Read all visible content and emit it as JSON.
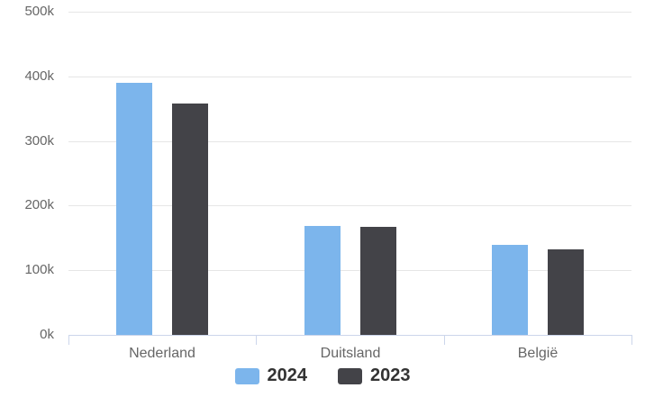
{
  "chart_data": {
    "type": "bar",
    "title": "",
    "xlabel": "",
    "ylabel": "",
    "categories": [
      "Nederland",
      "Duitsland",
      "België"
    ],
    "series": [
      {
        "name": "2024",
        "color": "#7cb5ec",
        "values": [
          390000,
          168000,
          139000
        ]
      },
      {
        "name": "2023",
        "color": "#434348",
        "values": [
          358000,
          167000,
          132000
        ]
      }
    ],
    "ylim": [
      0,
      500000
    ],
    "ytick_step": 100000,
    "yticks": [
      {
        "value": 0,
        "label": "0k"
      },
      {
        "value": 100000,
        "label": "100k"
      },
      {
        "value": 200000,
        "label": "200k"
      },
      {
        "value": 300000,
        "label": "300k"
      },
      {
        "value": 400000,
        "label": "400k"
      },
      {
        "value": 500000,
        "label": "500k"
      }
    ],
    "grid": true,
    "legend_position": "bottom",
    "colors": {
      "grid_line": "#e6e6e6",
      "axis_line": "#ccd6eb",
      "tick_mark": "#ccd6eb",
      "axis_label_text": "#666666",
      "legend_text": "#333333",
      "background": "#ffffff"
    }
  }
}
